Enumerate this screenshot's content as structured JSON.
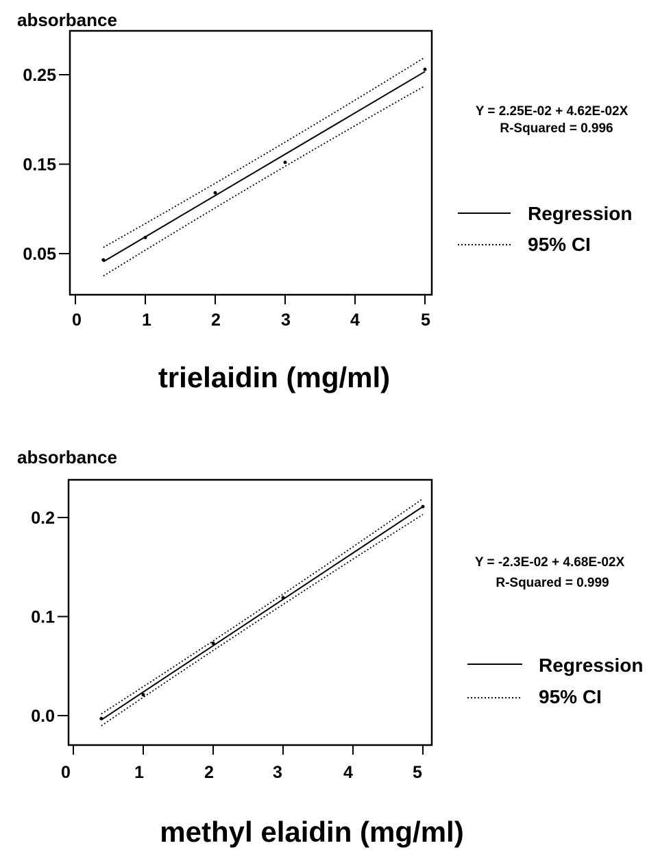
{
  "chart_data": [
    {
      "type": "line",
      "ylabel": "absorbance",
      "xlabel": "trielaidin (mg/ml)",
      "xlim": [
        0,
        5
      ],
      "ylim": [
        0.01,
        0.29
      ],
      "x_ticks": [
        "0",
        "1",
        "2",
        "3",
        "4",
        "5"
      ],
      "y_ticks": [
        "0.05",
        "0.15",
        "0.25"
      ],
      "equation": "Y = 2.25E-02 + 4.62E-02X",
      "r_squared": "R-Squared = 0.996",
      "points": [
        [
          0.4,
          0.043
        ],
        [
          1.0,
          0.068
        ],
        [
          2.0,
          0.118
        ],
        [
          3.0,
          0.152
        ],
        [
          5.0,
          0.256
        ]
      ],
      "regression": {
        "intercept": 0.0225,
        "slope": 0.0462,
        "x_range": [
          0.4,
          5.0
        ]
      },
      "ci_offsets": [
        0.016,
        0.011,
        0.016
      ],
      "legend": [
        {
          "style": "solid",
          "label": "Regression"
        },
        {
          "style": "dotted",
          "label": "95% CI"
        }
      ]
    },
    {
      "type": "line",
      "ylabel": "absorbance",
      "xlabel": "methyl elaidin (mg/ml)",
      "xlim": [
        0,
        5
      ],
      "ylim": [
        -0.03,
        0.235
      ],
      "x_ticks": [
        "0",
        "1",
        "2",
        "3",
        "4",
        "5"
      ],
      "y_ticks": [
        "0.0",
        "0.1",
        "0.2"
      ],
      "equation": "Y = -2.3E-02 + 4.68E-02X",
      "r_squared": "R-Squared = 0.999",
      "points": [
        [
          0.4,
          -0.003
        ],
        [
          1.0,
          0.021
        ],
        [
          2.0,
          0.073
        ],
        [
          3.0,
          0.119
        ],
        [
          5.0,
          0.211
        ]
      ],
      "regression": {
        "intercept": -0.023,
        "slope": 0.0468,
        "x_range": [
          0.4,
          5.0
        ]
      },
      "ci_offsets": [
        0.006,
        0.003,
        0.008
      ],
      "legend": [
        {
          "style": "solid",
          "label": "Regression"
        },
        {
          "style": "dotted",
          "label": "95% CI"
        }
      ]
    }
  ]
}
